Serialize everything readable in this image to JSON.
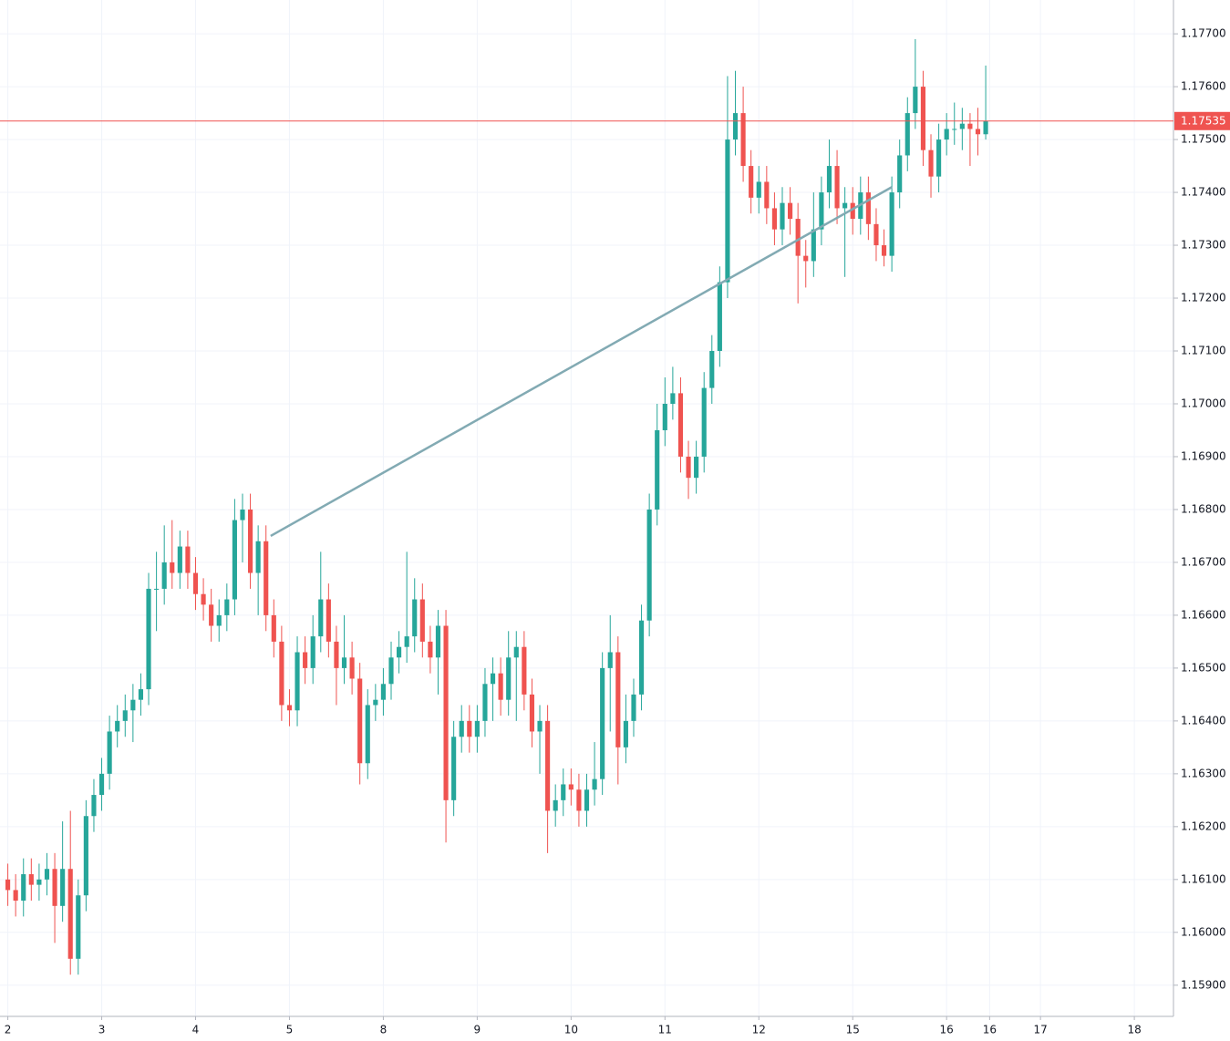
{
  "chart_data": {
    "type": "candlestick",
    "x": [
      0,
      1,
      2,
      3,
      4,
      5,
      6,
      7,
      8,
      9,
      10,
      11,
      12,
      13,
      14,
      15,
      16,
      17,
      18,
      19,
      20,
      21,
      22,
      23,
      24,
      25,
      26,
      27,
      28,
      29,
      30,
      31,
      32,
      33,
      34,
      35,
      36,
      37,
      38,
      39,
      40,
      41,
      42,
      43,
      44,
      45,
      46,
      47,
      48,
      49,
      50,
      51,
      52,
      53,
      54,
      55,
      56,
      57,
      58,
      59,
      60,
      61,
      62,
      63,
      64,
      65,
      66,
      67,
      68,
      69,
      70,
      71,
      72,
      73,
      74,
      75,
      76,
      77,
      78,
      79,
      80,
      81,
      82,
      83,
      84,
      85,
      86,
      87,
      88,
      89,
      90,
      91,
      92,
      93,
      94,
      95,
      96,
      97,
      98,
      99,
      100,
      101,
      102,
      103,
      104,
      105,
      106,
      107,
      108,
      109,
      110,
      111,
      112,
      113,
      114,
      115,
      116,
      117,
      118,
      119,
      120,
      121,
      122,
      123,
      124,
      125
    ],
    "open": [
      1.161,
      1.1608,
      1.1606,
      1.1611,
      1.1609,
      1.161,
      1.1612,
      1.1605,
      1.1612,
      1.1595,
      1.1607,
      1.1622,
      1.1626,
      1.163,
      1.1638,
      1.164,
      1.1642,
      1.1644,
      1.1646,
      1.1665,
      1.1665,
      1.167,
      1.1668,
      1.1673,
      1.1668,
      1.1664,
      1.1662,
      1.1658,
      1.166,
      1.1663,
      1.1678,
      1.168,
      1.1668,
      1.1674,
      1.166,
      1.1655,
      1.1643,
      1.1642,
      1.1653,
      1.165,
      1.1656,
      1.1663,
      1.1655,
      1.165,
      1.1652,
      1.1648,
      1.1632,
      1.1643,
      1.1644,
      1.1647,
      1.1652,
      1.1654,
      1.1656,
      1.1663,
      1.1655,
      1.1652,
      1.1658,
      1.1625,
      1.1637,
      1.164,
      1.1637,
      1.164,
      1.1647,
      1.1649,
      1.1644,
      1.1652,
      1.1654,
      1.1645,
      1.1638,
      1.164,
      1.1623,
      1.1625,
      1.1628,
      1.1627,
      1.1623,
      1.1627,
      1.1629,
      1.165,
      1.1653,
      1.1635,
      1.164,
      1.1645,
      1.1659,
      1.168,
      1.1695,
      1.17,
      1.1702,
      1.169,
      1.1686,
      1.169,
      1.1703,
      1.171,
      1.1723,
      1.175,
      1.1755,
      1.1745,
      1.1739,
      1.1742,
      1.1737,
      1.1733,
      1.1738,
      1.1735,
      1.1728,
      1.1727,
      1.1733,
      1.174,
      1.1745,
      1.1737,
      1.1738,
      1.1735,
      1.174,
      1.1734,
      1.173,
      1.1728,
      1.174,
      1.1747,
      1.1755,
      1.176,
      1.1748,
      1.1743,
      1.175,
      1.1752,
      1.1752,
      1.1753,
      1.1752,
      1.1751
    ],
    "high": [
      1.1613,
      1.1611,
      1.1614,
      1.1614,
      1.1613,
      1.1615,
      1.1615,
      1.1621,
      1.1623,
      1.161,
      1.1625,
      1.1629,
      1.1633,
      1.1641,
      1.1643,
      1.1645,
      1.1647,
      1.1649,
      1.1668,
      1.1672,
      1.1677,
      1.1678,
      1.1676,
      1.1676,
      1.1671,
      1.1667,
      1.1665,
      1.1663,
      1.1666,
      1.1682,
      1.1683,
      1.1683,
      1.1677,
      1.1677,
      1.1663,
      1.1658,
      1.1646,
      1.1656,
      1.1656,
      1.166,
      1.1672,
      1.1666,
      1.1658,
      1.166,
      1.1655,
      1.1651,
      1.1646,
      1.1647,
      1.165,
      1.1655,
      1.1657,
      1.1672,
      1.1667,
      1.1666,
      1.1658,
      1.1661,
      1.1661,
      1.164,
      1.1643,
      1.1643,
      1.1643,
      1.165,
      1.1652,
      1.1652,
      1.1657,
      1.1657,
      1.1657,
      1.1648,
      1.1643,
      1.1643,
      1.1628,
      1.1631,
      1.1631,
      1.163,
      1.163,
      1.1636,
      1.1653,
      1.166,
      1.1656,
      1.1645,
      1.1648,
      1.1662,
      1.1683,
      1.17,
      1.1705,
      1.1707,
      1.1705,
      1.1693,
      1.1693,
      1.1706,
      1.1713,
      1.1726,
      1.1762,
      1.1763,
      1.176,
      1.1748,
      1.1745,
      1.1745,
      1.174,
      1.1741,
      1.1741,
      1.1738,
      1.1731,
      1.174,
      1.1743,
      1.175,
      1.1748,
      1.1741,
      1.1741,
      1.1743,
      1.1743,
      1.1737,
      1.1733,
      1.1743,
      1.175,
      1.1758,
      1.1769,
      1.1763,
      1.1751,
      1.1753,
      1.1755,
      1.1757,
      1.1756,
      1.1755,
      1.1756,
      1.1764
    ],
    "low": [
      1.1605,
      1.1603,
      1.1603,
      1.1606,
      1.1606,
      1.1607,
      1.1598,
      1.1602,
      1.1592,
      1.1592,
      1.1604,
      1.1619,
      1.1623,
      1.1627,
      1.1635,
      1.1637,
      1.1636,
      1.1641,
      1.1643,
      1.1657,
      1.1662,
      1.1665,
      1.1665,
      1.1665,
      1.1661,
      1.1659,
      1.1655,
      1.1655,
      1.1657,
      1.166,
      1.167,
      1.1665,
      1.166,
      1.1657,
      1.1652,
      1.164,
      1.1639,
      1.1639,
      1.1647,
      1.1647,
      1.1653,
      1.1652,
      1.1643,
      1.1647,
      1.1645,
      1.1628,
      1.1629,
      1.164,
      1.1641,
      1.1644,
      1.1649,
      1.1651,
      1.1653,
      1.1652,
      1.1649,
      1.1645,
      1.1617,
      1.1622,
      1.1634,
      1.1634,
      1.1634,
      1.1637,
      1.164,
      1.1641,
      1.1641,
      1.164,
      1.1642,
      1.1635,
      1.163,
      1.1615,
      1.162,
      1.1622,
      1.1624,
      1.162,
      1.162,
      1.1624,
      1.1626,
      1.1638,
      1.1628,
      1.1632,
      1.1637,
      1.1642,
      1.1656,
      1.1677,
      1.1692,
      1.1697,
      1.1687,
      1.1682,
      1.1683,
      1.1687,
      1.17,
      1.1707,
      1.172,
      1.1747,
      1.1742,
      1.1736,
      1.1736,
      1.1734,
      1.173,
      1.173,
      1.1732,
      1.1719,
      1.1722,
      1.1724,
      1.173,
      1.1737,
      1.1734,
      1.1724,
      1.1732,
      1.1732,
      1.1731,
      1.1727,
      1.1726,
      1.1725,
      1.1737,
      1.1744,
      1.1752,
      1.1745,
      1.1739,
      1.174,
      1.1747,
      1.1749,
      1.1748,
      1.1745,
      1.1747,
      1.175
    ],
    "close": [
      1.1608,
      1.1606,
      1.1611,
      1.1609,
      1.161,
      1.1612,
      1.1605,
      1.1612,
      1.1595,
      1.1607,
      1.1622,
      1.1626,
      1.163,
      1.1638,
      1.164,
      1.1642,
      1.1644,
      1.1646,
      1.1665,
      1.1665,
      1.167,
      1.1668,
      1.1673,
      1.1668,
      1.1664,
      1.1662,
      1.1658,
      1.166,
      1.1663,
      1.1678,
      1.168,
      1.1668,
      1.1674,
      1.166,
      1.1655,
      1.1643,
      1.1642,
      1.1653,
      1.165,
      1.1656,
      1.1663,
      1.1655,
      1.165,
      1.1652,
      1.1648,
      1.1632,
      1.1643,
      1.1644,
      1.1647,
      1.1652,
      1.1654,
      1.1656,
      1.1663,
      1.1655,
      1.1652,
      1.1658,
      1.1625,
      1.1637,
      1.164,
      1.1637,
      1.164,
      1.1647,
      1.1649,
      1.1644,
      1.1652,
      1.1654,
      1.1645,
      1.1638,
      1.164,
      1.1623,
      1.1625,
      1.1628,
      1.1627,
      1.1623,
      1.1627,
      1.1629,
      1.165,
      1.1653,
      1.1635,
      1.164,
      1.1645,
      1.1659,
      1.168,
      1.1695,
      1.17,
      1.1702,
      1.169,
      1.1686,
      1.169,
      1.1703,
      1.171,
      1.1723,
      1.175,
      1.1755,
      1.1745,
      1.1739,
      1.1742,
      1.1737,
      1.1733,
      1.1738,
      1.1735,
      1.1728,
      1.1727,
      1.1733,
      1.174,
      1.1745,
      1.1737,
      1.1738,
      1.1735,
      1.174,
      1.1734,
      1.173,
      1.1728,
      1.174,
      1.1747,
      1.1755,
      1.176,
      1.1748,
      1.1743,
      1.175,
      1.1752,
      1.1752,
      1.1753,
      1.1752,
      1.1751,
      1.17535
    ],
    "up_color": "#26a69a",
    "down_color": "#ef5350",
    "xlim": [
      -1,
      149
    ],
    "xticks": [
      {
        "value": 0,
        "label": "2"
      },
      {
        "value": 12,
        "label": "3"
      },
      {
        "value": 24,
        "label": "4"
      },
      {
        "value": 36,
        "label": "5"
      },
      {
        "value": 48,
        "label": "8"
      },
      {
        "value": 60,
        "label": "9"
      },
      {
        "value": 72,
        "label": "10"
      },
      {
        "value": 84,
        "label": "11"
      },
      {
        "value": 96,
        "label": "12"
      },
      {
        "value": 108,
        "label": "15"
      },
      {
        "value": 120,
        "label": "16"
      },
      {
        "value": 125.5,
        "label": "16"
      },
      {
        "value": 132,
        "label": "17"
      },
      {
        "value": 144,
        "label": "18"
      }
    ],
    "ylim": [
      1.15841,
      1.17764
    ],
    "yticks": [
      {
        "value": 1.159,
        "label": "1.15900"
      },
      {
        "value": 1.16,
        "label": "1.16000"
      },
      {
        "value": 1.161,
        "label": "1.16100"
      },
      {
        "value": 1.162,
        "label": "1.16200"
      },
      {
        "value": 1.163,
        "label": "1.16300"
      },
      {
        "value": 1.164,
        "label": "1.16400"
      },
      {
        "value": 1.165,
        "label": "1.16500"
      },
      {
        "value": 1.166,
        "label": "1.16600"
      },
      {
        "value": 1.167,
        "label": "1.16700"
      },
      {
        "value": 1.168,
        "label": "1.16800"
      },
      {
        "value": 1.169,
        "label": "1.16900"
      },
      {
        "value": 1.17,
        "label": "1.17000"
      },
      {
        "value": 1.171,
        "label": "1.17100"
      },
      {
        "value": 1.172,
        "label": "1.17200"
      },
      {
        "value": 1.173,
        "label": "1.17300"
      },
      {
        "value": 1.174,
        "label": "1.17400"
      },
      {
        "value": 1.175,
        "label": "1.17500"
      },
      {
        "value": 1.176,
        "label": "1.17600"
      },
      {
        "value": 1.177,
        "label": "1.17700"
      }
    ],
    "grid": true,
    "last_price": {
      "value": 1.17535,
      "color": "#ef5350"
    },
    "trendline": {
      "x": [
        33.6,
        113
      ],
      "y": [
        1.1675,
        1.1741
      ],
      "color": "#82aab3"
    }
  }
}
